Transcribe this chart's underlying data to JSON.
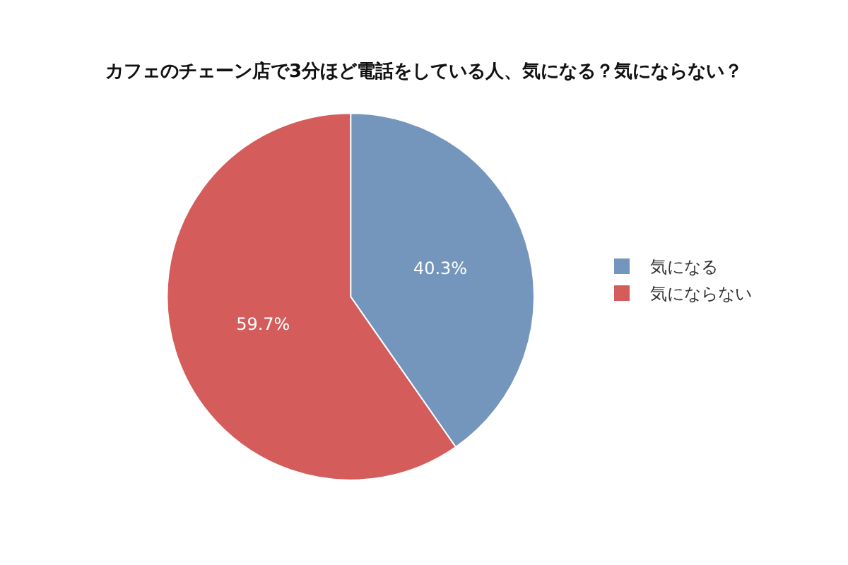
{
  "chart_data": {
    "type": "pie",
    "title": "カフェのチェーン店で3分ほど電話をしている人、気になる？気にならない？",
    "categories": [
      "気になる",
      "気にならない"
    ],
    "values": [
      40.3,
      59.7
    ],
    "colors": [
      "#7496bd",
      "#d45d5c"
    ],
    "value_labels": [
      "40.3%",
      "59.7%"
    ],
    "legend": "right"
  }
}
